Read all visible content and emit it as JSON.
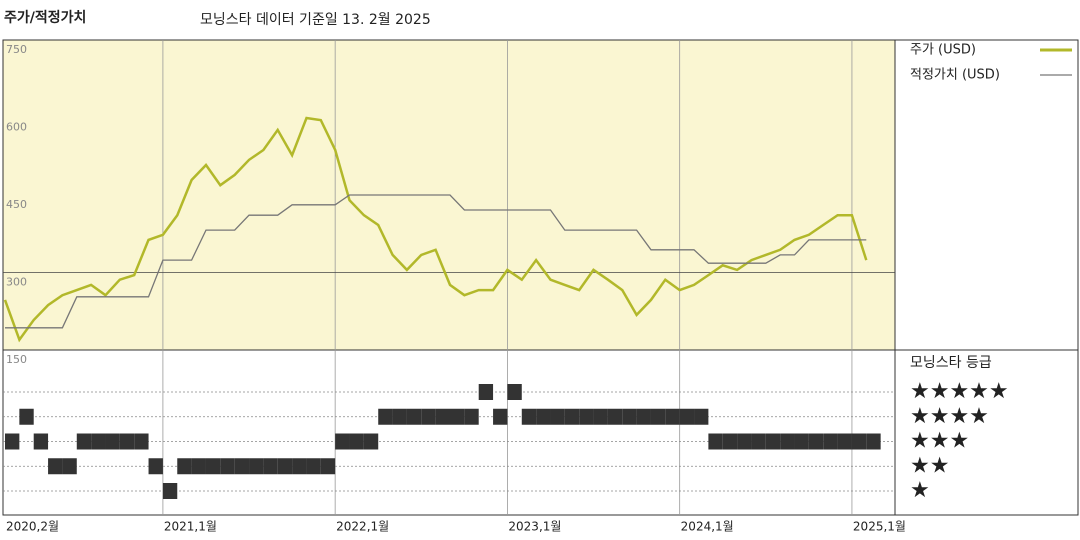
{
  "chart_data": {
    "type": "line",
    "title": "주가/적정가치",
    "subtitle": "모닝스타 데이터 기준일 13. 2월 2025",
    "background": "#faf6d2",
    "x": [
      "2020-02",
      "2020-03",
      "2020-04",
      "2020-05",
      "2020-06",
      "2020-07",
      "2020-08",
      "2020-09",
      "2020-10",
      "2020-11",
      "2020-12",
      "2021-01",
      "2021-02",
      "2021-03",
      "2021-04",
      "2021-05",
      "2021-06",
      "2021-07",
      "2021-08",
      "2021-09",
      "2021-10",
      "2021-11",
      "2021-12",
      "2022-01",
      "2022-02",
      "2022-03",
      "2022-04",
      "2022-05",
      "2022-06",
      "2022-07",
      "2022-08",
      "2022-09",
      "2022-10",
      "2022-11",
      "2022-12",
      "2023-01",
      "2023-02",
      "2023-03",
      "2023-04",
      "2023-05",
      "2023-06",
      "2023-07",
      "2023-08",
      "2023-09",
      "2023-10",
      "2023-11",
      "2023-12",
      "2024-01",
      "2024-02",
      "2024-03",
      "2024-04",
      "2024-05",
      "2024-06",
      "2024-07",
      "2024-08",
      "2024-09",
      "2024-10",
      "2024-11",
      "2024-12",
      "2025-01",
      "2025-02"
    ],
    "series": [
      {
        "name": "주가 (USD)",
        "color": "#b2b82a",
        "values": [
          247,
          170,
          208,
          237,
          256,
          266,
          276,
          256,
          286,
          295,
          363,
          373,
          411,
          479,
          508,
          469,
          489,
          518,
          537,
          576,
          527,
          599,
          595,
          537,
          440,
          411,
          392,
          334,
          305,
          334,
          344,
          276,
          256,
          266,
          266,
          305,
          286,
          324,
          286,
          276,
          266,
          305,
          286,
          266,
          218,
          247,
          286,
          266,
          276,
          295,
          314,
          305,
          324,
          334,
          344,
          363,
          373,
          392,
          411,
          411,
          324
        ]
      },
      {
        "name": "적정가치 (USD)",
        "color": "#777777",
        "values": [
          193,
          193,
          193,
          193,
          193,
          253,
          253,
          253,
          253,
          253,
          253,
          324,
          324,
          324,
          382,
          382,
          382,
          411,
          411,
          411,
          431,
          431,
          431,
          431,
          450,
          450,
          450,
          450,
          450,
          450,
          450,
          450,
          421,
          421,
          421,
          421,
          421,
          421,
          421,
          382,
          382,
          382,
          382,
          382,
          382,
          344,
          344,
          344,
          344,
          318,
          318,
          318,
          318,
          318,
          334,
          334,
          363,
          363,
          363,
          363,
          363
        ]
      }
    ],
    "ylim": [
      150,
      750
    ],
    "yticks": [
      150,
      300,
      450,
      600,
      750
    ],
    "reference_line": 300,
    "xlim": [
      "2020-02",
      "2025-04"
    ],
    "xticks": [
      {
        "value": "2020-02",
        "label": "2020,2월"
      },
      {
        "value": "2021-01",
        "label": "2021,1월"
      },
      {
        "value": "2022-01",
        "label": "2022,1월"
      },
      {
        "value": "2023-01",
        "label": "2023,1월"
      },
      {
        "value": "2024-01",
        "label": "2024,1월"
      },
      {
        "value": "2025-01",
        "label": "2025,1월"
      }
    ],
    "ratings": {
      "title": "모닝스타 등급",
      "color": "#333333",
      "labels": [
        "★",
        "★★",
        "★★★",
        "★★★★",
        "★★★★★"
      ],
      "values": [
        3,
        4,
        3,
        2,
        2,
        3,
        3,
        3,
        3,
        3,
        2,
        1,
        2,
        2,
        2,
        2,
        2,
        2,
        2,
        2,
        2,
        2,
        2,
        3,
        3,
        3,
        4,
        4,
        4,
        4,
        4,
        4,
        4,
        5,
        4,
        5,
        4,
        4,
        4,
        4,
        4,
        4,
        4,
        4,
        4,
        4,
        4,
        4,
        4,
        3,
        3,
        3,
        3,
        3,
        3,
        3,
        3,
        3,
        3,
        3,
        3
      ]
    }
  }
}
